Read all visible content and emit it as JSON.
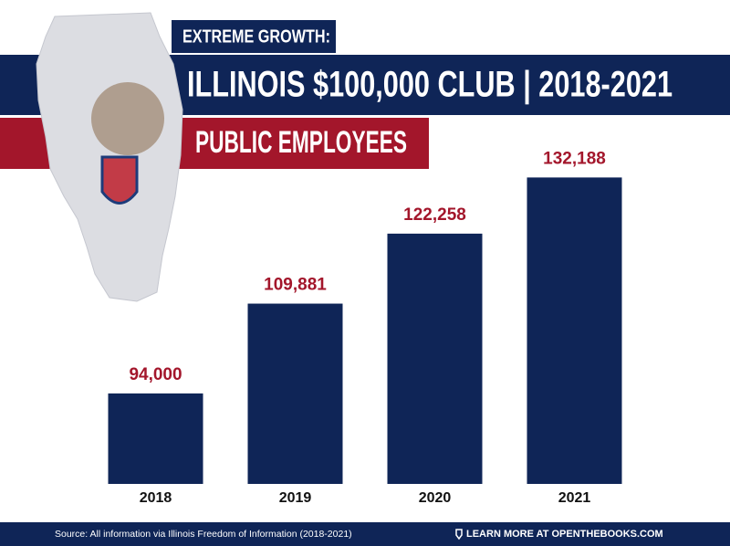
{
  "chart_data": {
    "type": "bar",
    "kicker": "EXTREME GROWTH:",
    "title": "ILLINOIS $100,000 CLUB | 2018-2021",
    "subtitle": "PUBLIC EMPLOYEES",
    "categories": [
      "2018",
      "2019",
      "2020",
      "2021"
    ],
    "values": [
      94000,
      109881,
      122258,
      132188
    ],
    "value_labels": [
      "94,000",
      "109,881",
      "122,258",
      "132,188"
    ],
    "color": "#0f2557",
    "label_color": "#a3162b",
    "ylim": [
      78000,
      140000
    ],
    "source": "Source: All information via Illinois Freedom of Information (2018-2021)",
    "link": "LEARN MORE AT OPENTHEBOOKS.COM"
  }
}
